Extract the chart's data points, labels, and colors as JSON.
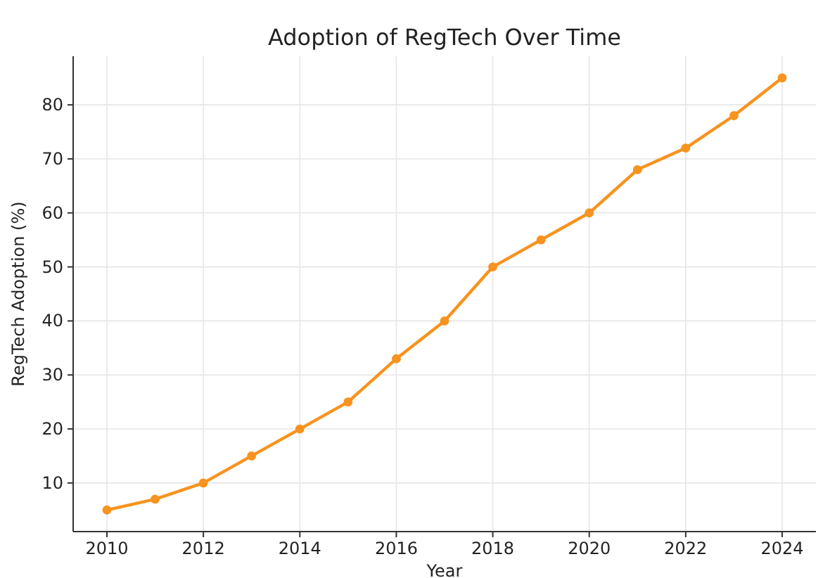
{
  "chart_data": {
    "type": "line",
    "title": "Adoption of RegTech Over Time",
    "xlabel": "Year",
    "ylabel": "RegTech Adoption (%)",
    "x": [
      2010,
      2011,
      2012,
      2013,
      2014,
      2015,
      2016,
      2017,
      2018,
      2019,
      2020,
      2021,
      2022,
      2023,
      2024
    ],
    "series": [
      {
        "color": "#f7931e",
        "values": [
          5,
          7,
          10,
          15,
          20,
          25,
          33,
          40,
          50,
          55,
          60,
          68,
          72,
          78,
          85
        ]
      }
    ],
    "xlim": [
      2009.3,
      2024.7
    ],
    "xticks": [
      2010,
      2012,
      2014,
      2016,
      2018,
      2020,
      2022,
      2024
    ],
    "ylim": [
      1,
      89
    ],
    "yticks": [
      10,
      20,
      30,
      40,
      50,
      60,
      70,
      80
    ],
    "grid": true,
    "marker": "circle",
    "line_style": "solid"
  }
}
